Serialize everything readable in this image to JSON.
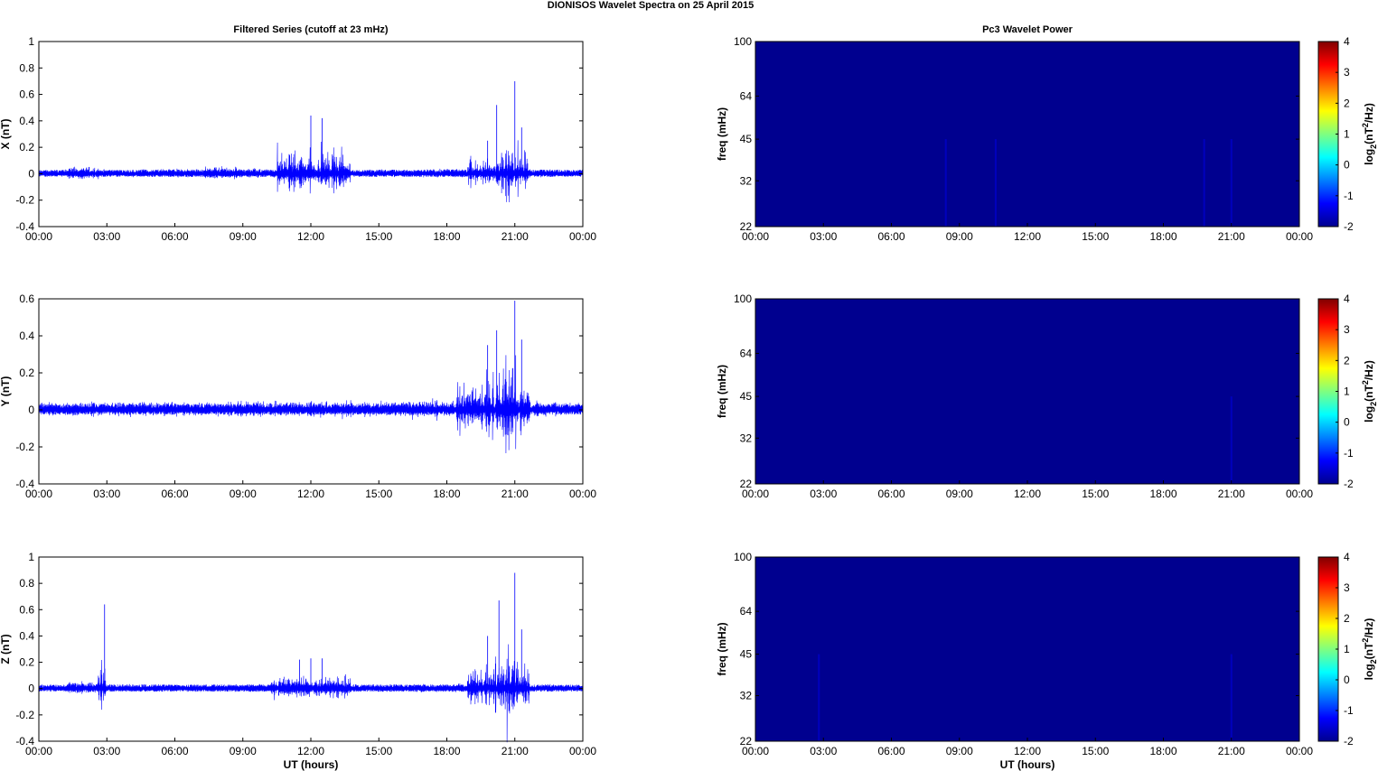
{
  "figure": {
    "title": "DIONISOS Wavelet Spectra on 25 April     2015",
    "x_ticks": [
      "00:00",
      "03:00",
      "06:00",
      "09:00",
      "12:00",
      "15:00",
      "18:00",
      "21:00",
      "00:00"
    ],
    "xlabel": "UT (hours)",
    "colors": {
      "trace": "#0000ff",
      "background": "#00008f",
      "axes": "#000000"
    }
  },
  "chart_data": [
    {
      "type": "line",
      "title": "Filtered Series (cutoff at 23 mHz)",
      "ylabel": "X (nT)",
      "ylim": [
        -0.4,
        1
      ],
      "yticks": [
        "1",
        "0.8",
        "0.6",
        "0.4",
        "0.2",
        "0",
        "-0.2",
        "-0.4"
      ],
      "xlim_hours": [
        0,
        24
      ],
      "series": [
        {
          "x_hours": [
            0,
            2.3,
            3,
            6,
            8.5,
            9,
            12,
            12.5,
            15,
            18,
            19.8,
            20.2,
            21,
            21.3,
            22,
            24
          ],
          "envelope": [
            0.03,
            0.1,
            0.04,
            0.05,
            0.09,
            0.06,
            0.44,
            0.42,
            0.04,
            0.05,
            0.25,
            0.52,
            0.7,
            0.35,
            0.05,
            0.03
          ]
        }
      ]
    },
    {
      "type": "line",
      "ylabel": "Y (nT)",
      "ylim": [
        -0.4,
        0.6
      ],
      "yticks": [
        "0.6",
        "0.4",
        "0.2",
        "0",
        "-0.2",
        "-0.4"
      ],
      "xlim_hours": [
        0,
        24
      ],
      "series": [
        {
          "x_hours": [
            0,
            3,
            6,
            9,
            12,
            15,
            17,
            19.8,
            20.2,
            21,
            21.3,
            22,
            24
          ],
          "envelope": [
            0.06,
            0.07,
            0.07,
            0.08,
            0.08,
            0.08,
            0.09,
            0.35,
            0.43,
            0.59,
            0.38,
            0.08,
            0.06
          ]
        }
      ]
    },
    {
      "type": "line",
      "ylabel": "Z (nT)",
      "ylim": [
        -0.4,
        1
      ],
      "yticks": [
        "1",
        "0.8",
        "0.6",
        "0.4",
        "0.2",
        "0",
        "-0.2",
        "-0.4"
      ],
      "xlim_hours": [
        0,
        24
      ],
      "series": [
        {
          "x_hours": [
            0,
            2.3,
            2.9,
            3,
            6,
            9,
            11.5,
            12,
            12.5,
            15,
            18,
            19.8,
            20.3,
            21,
            21.3,
            22,
            24
          ],
          "envelope": [
            0.03,
            0.1,
            0.64,
            0.04,
            0.04,
            0.04,
            0.22,
            0.23,
            0.23,
            0.04,
            0.05,
            0.4,
            0.67,
            0.88,
            0.45,
            0.04,
            0.03
          ]
        }
      ]
    },
    {
      "type": "heatmap",
      "title": "Pc3 Wavelet Power",
      "ylabel": "freq (mHz)",
      "yticks": [
        "100",
        "64",
        "45",
        "32",
        "22"
      ],
      "yscale": "log",
      "ylim": [
        22,
        100
      ],
      "colorbar": {
        "label": "log2(nT2/Hz)",
        "ticks": [
          "4",
          "3",
          "2",
          "1",
          "0",
          "-1",
          "-2"
        ],
        "range": [
          -2,
          4
        ]
      },
      "faint_streaks_hours": [
        8.4,
        10.6,
        19.8,
        21
      ]
    },
    {
      "type": "heatmap",
      "ylabel": "freq (mHz)",
      "yticks": [
        "100",
        "64",
        "45",
        "32",
        "22"
      ],
      "yscale": "log",
      "ylim": [
        22,
        100
      ],
      "colorbar": {
        "label": "log2(nT2/Hz)",
        "ticks": [
          "4",
          "3",
          "2",
          "1",
          "0",
          "-1",
          "-2"
        ],
        "range": [
          -2,
          4
        ]
      },
      "faint_streaks_hours": [
        21
      ]
    },
    {
      "type": "heatmap",
      "ylabel": "freq (mHz)",
      "yticks": [
        "100",
        "64",
        "45",
        "32",
        "22"
      ],
      "yscale": "log",
      "ylim": [
        22,
        100
      ],
      "colorbar": {
        "label": "log2(nT2/Hz)",
        "ticks": [
          "4",
          "3",
          "2",
          "1",
          "0",
          "-1",
          "-2"
        ],
        "range": [
          -2,
          4
        ]
      },
      "faint_streaks_hours": [
        2.8,
        21
      ]
    }
  ]
}
